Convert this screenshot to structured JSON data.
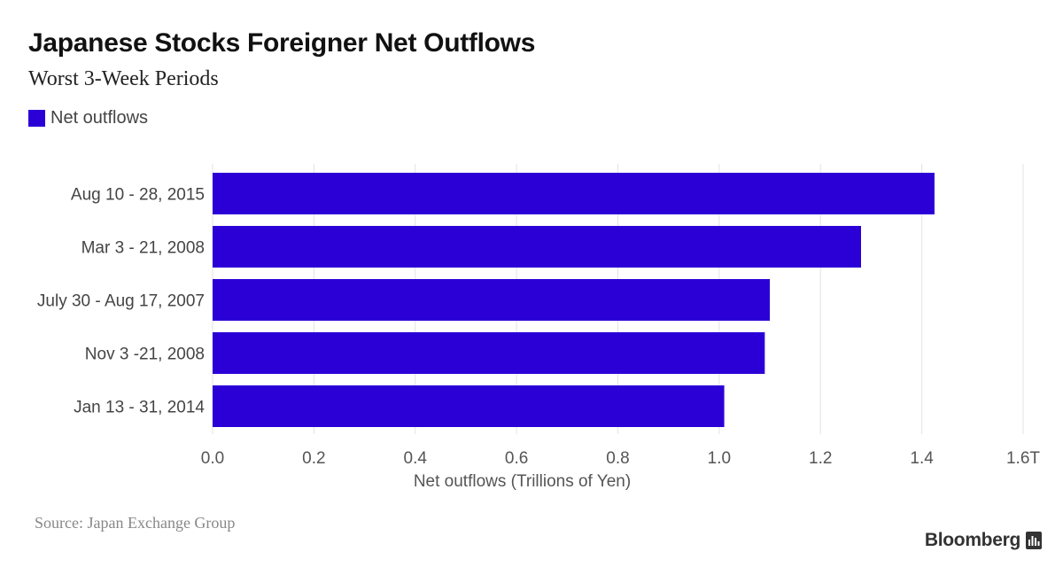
{
  "header": {
    "title": "Japanese Stocks Foreigner Net Outflows",
    "subtitle": "Worst 3-Week Periods"
  },
  "legend": {
    "label": "Net outflows"
  },
  "colors": {
    "bar": "#2b00d7",
    "grid": "#e3e3e3",
    "tick_text": "#555555",
    "category_text": "#444444"
  },
  "footer": {
    "source": "Source: Japan Exchange Group",
    "brand": "Bloomberg",
    "brand_icon": "bloomberg-chart-icon"
  },
  "chart_data": {
    "type": "bar",
    "orientation": "horizontal",
    "title": "Japanese Stocks Foreigner Net Outflows",
    "subtitle": "Worst 3-Week Periods",
    "categories": [
      "Aug 10 - 28, 2015",
      "Mar 3 - 21, 2008",
      "July 30 - Aug 17, 2007",
      "Nov 3 -21, 2008",
      "Jan 13 - 31, 2014"
    ],
    "series": [
      {
        "name": "Net outflows",
        "values": [
          1.425,
          1.28,
          1.1,
          1.09,
          1.01
        ]
      }
    ],
    "xlabel": "Net outflows (Trillions of Yen)",
    "ylabel": "",
    "xlim": [
      0,
      1.6
    ],
    "xticks": [
      0,
      0.2,
      0.4,
      0.6,
      0.8,
      1.0,
      1.2,
      1.4,
      1.6
    ],
    "xtick_labels": [
      "0.0",
      "0.2",
      "0.4",
      "0.6",
      "0.8",
      "1.0",
      "1.2",
      "1.4",
      "1.6T"
    ],
    "grid": true,
    "legend_position": "top-left"
  }
}
